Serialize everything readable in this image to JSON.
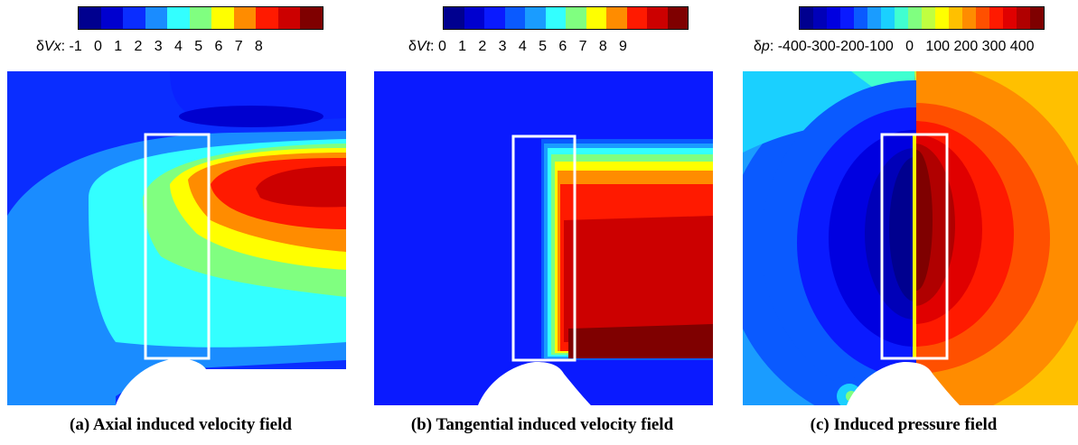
{
  "figure": {
    "panels": [
      {
        "id": "a",
        "colorbar": {
          "variable_prefix": "δ",
          "variable": "Vx",
          "suffix": ":",
          "ticks": "-1   0   1   2   3   4   5   6   7   8",
          "colors": [
            "#00008f",
            "#0000cf",
            "#0a2dff",
            "#1a8cff",
            "#33ffff",
            "#80ff80",
            "#ffff00",
            "#ff8c00",
            "#ff1a00",
            "#cc0000",
            "#7f0000"
          ]
        },
        "caption": "(a) Axial induced velocity field"
      },
      {
        "id": "b",
        "colorbar": {
          "variable_prefix": "δ",
          "variable": "Vt",
          "suffix": ":",
          "ticks": "0   1   2   3   4   5   6   7   8   9",
          "colors": [
            "#00008f",
            "#0000cf",
            "#0a1aff",
            "#0a5aff",
            "#1a9cff",
            "#33ffff",
            "#80ff80",
            "#ffff00",
            "#ff8c00",
            "#ff1a00",
            "#cc0000",
            "#7f0000"
          ]
        },
        "caption": "(b) Tangential induced velocity field"
      },
      {
        "id": "c",
        "colorbar": {
          "variable_prefix": "δ",
          "variable": "p",
          "suffix": ":",
          "ticks": "-400-300-200-100   0   100 200 300 400",
          "colors": [
            "#00008f",
            "#0000b8",
            "#0000e0",
            "#0a1aff",
            "#0a5aff",
            "#1a9cff",
            "#1ad0ff",
            "#40ffd0",
            "#80ff80",
            "#c0ff40",
            "#ffff00",
            "#ffc000",
            "#ff8c00",
            "#ff5000",
            "#ff1a00",
            "#e00000",
            "#b00000",
            "#7f0000"
          ]
        },
        "caption": "(c) Induced pressure field"
      }
    ]
  }
}
